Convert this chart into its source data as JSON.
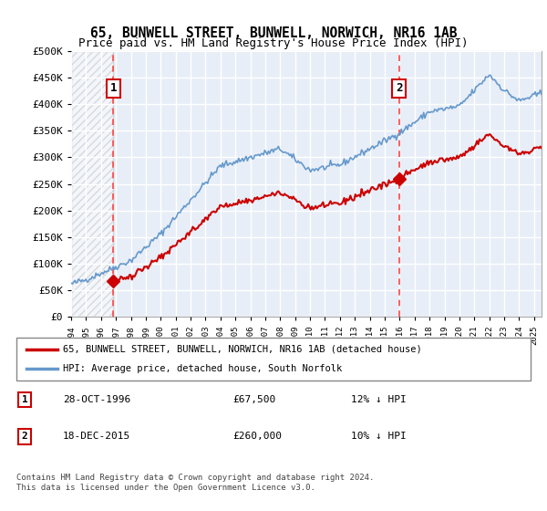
{
  "title1": "65, BUNWELL STREET, BUNWELL, NORWICH, NR16 1AB",
  "title2": "Price paid vs. HM Land Registry's House Price Index (HPI)",
  "legend_line1": "65, BUNWELL STREET, BUNWELL, NORWICH, NR16 1AB (detached house)",
  "legend_line2": "HPI: Average price, detached house, South Norfolk",
  "annotation1_label": "1",
  "annotation1_date": "28-OCT-1996",
  "annotation1_price": "£67,500",
  "annotation1_hpi": "12% ↓ HPI",
  "annotation2_label": "2",
  "annotation2_date": "18-DEC-2015",
  "annotation2_price": "£260,000",
  "annotation2_hpi": "10% ↓ HPI",
  "footer": "Contains HM Land Registry data © Crown copyright and database right 2024.\nThis data is licensed under the Open Government Licence v3.0.",
  "sale1_year": 1996.83,
  "sale1_price": 67500,
  "sale2_year": 2015.96,
  "sale2_price": 260000,
  "ylim_min": 0,
  "ylim_max": 500000,
  "xlim_min": 1994,
  "xlim_max": 2025.5,
  "plot_bg": "#e8eef7",
  "grid_color": "#ffffff",
  "hpi_color": "#6699cc",
  "sale_color": "#cc0000",
  "dashed_line_color": "#ff4444",
  "marker_color": "#cc0000"
}
